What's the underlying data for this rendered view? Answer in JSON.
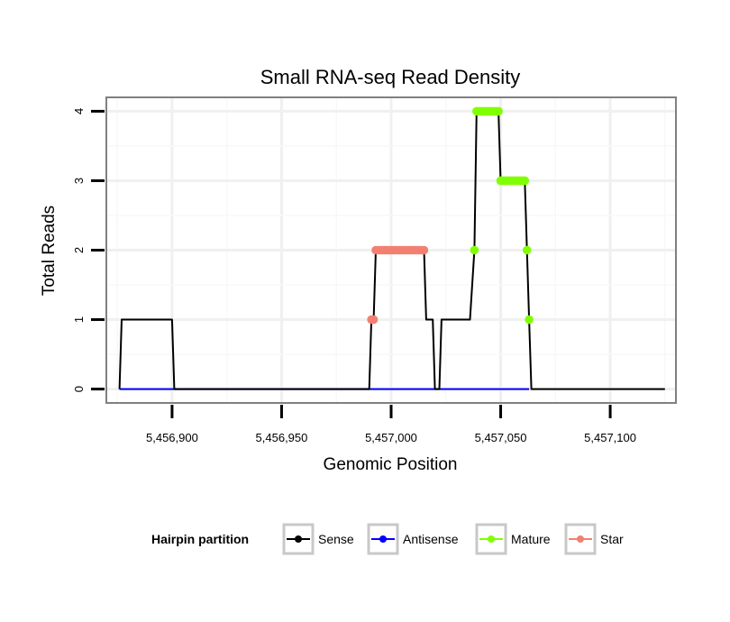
{
  "chart_data": {
    "type": "line",
    "title": "Small RNA-seq Read Density",
    "xlabel": "Genomic Position",
    "ylabel": "Total Reads",
    "xlim": [
      5456870,
      5457130
    ],
    "ylim": [
      -0.2,
      4.2
    ],
    "xticks": [
      5456900,
      5456950,
      5457000,
      5457050,
      5457100
    ],
    "xtick_labels": [
      "5,456,900",
      "5,456,950",
      "5,457,000",
      "5,457,050",
      "5,457,100"
    ],
    "yticks": [
      0,
      1,
      2,
      3,
      4
    ],
    "ytick_labels": [
      "0",
      "1",
      "2",
      "3",
      "4"
    ],
    "grid": true,
    "legend_title": "Hairpin partition",
    "legend_position": "bottom",
    "series": [
      {
        "name": "Sense",
        "color": "#000000",
        "points": [
          [
            5456876,
            0
          ],
          [
            5456877,
            1
          ],
          [
            5456900,
            1
          ],
          [
            5456901,
            0
          ],
          [
            5456990,
            0
          ],
          [
            5456991,
            1
          ],
          [
            5456992,
            1
          ],
          [
            5456993,
            2
          ],
          [
            5457015,
            2
          ],
          [
            5457016,
            1
          ],
          [
            5457019,
            1
          ],
          [
            5457020,
            0
          ],
          [
            5457022,
            0
          ],
          [
            5457023,
            1
          ],
          [
            5457036,
            1
          ],
          [
            5457038,
            2
          ],
          [
            5457039,
            4
          ],
          [
            5457049,
            4
          ],
          [
            5457050,
            3
          ],
          [
            5457061,
            3
          ],
          [
            5457062,
            2
          ],
          [
            5457063,
            1
          ],
          [
            5457064,
            0
          ],
          [
            5457125,
            0
          ]
        ]
      },
      {
        "name": "Antisense",
        "color": "#0000ff",
        "points": [
          [
            5456876,
            0
          ],
          [
            5457063,
            0
          ]
        ]
      },
      {
        "name": "Mature",
        "color": "#80ff00",
        "points": [
          [
            5457038,
            2
          ],
          [
            5457039,
            4
          ],
          [
            5457040,
            4
          ],
          [
            5457041,
            4
          ],
          [
            5457042,
            4
          ],
          [
            5457043,
            4
          ],
          [
            5457044,
            4
          ],
          [
            5457045,
            4
          ],
          [
            5457046,
            4
          ],
          [
            5457047,
            4
          ],
          [
            5457048,
            4
          ],
          [
            5457049,
            4
          ],
          [
            5457050,
            3
          ],
          [
            5457051,
            3
          ],
          [
            5457052,
            3
          ],
          [
            5457053,
            3
          ],
          [
            5457054,
            3
          ],
          [
            5457055,
            3
          ],
          [
            5457056,
            3
          ],
          [
            5457057,
            3
          ],
          [
            5457058,
            3
          ],
          [
            5457059,
            3
          ],
          [
            5457060,
            3
          ],
          [
            5457061,
            3
          ],
          [
            5457062,
            2
          ],
          [
            5457063,
            1
          ]
        ]
      },
      {
        "name": "Star",
        "color": "#f28072",
        "points": [
          [
            5456991,
            1
          ],
          [
            5456992,
            1
          ],
          [
            5456993,
            2
          ],
          [
            5456994,
            2
          ],
          [
            5456995,
            2
          ],
          [
            5456996,
            2
          ],
          [
            5456997,
            2
          ],
          [
            5456998,
            2
          ],
          [
            5456999,
            2
          ],
          [
            5457000,
            2
          ],
          [
            5457001,
            2
          ],
          [
            5457002,
            2
          ],
          [
            5457003,
            2
          ],
          [
            5457004,
            2
          ],
          [
            5457005,
            2
          ],
          [
            5457006,
            2
          ],
          [
            5457007,
            2
          ],
          [
            5457008,
            2
          ],
          [
            5457009,
            2
          ],
          [
            5457010,
            2
          ],
          [
            5457011,
            2
          ],
          [
            5457012,
            2
          ],
          [
            5457013,
            2
          ],
          [
            5457014,
            2
          ],
          [
            5457015,
            2
          ]
        ]
      }
    ]
  }
}
